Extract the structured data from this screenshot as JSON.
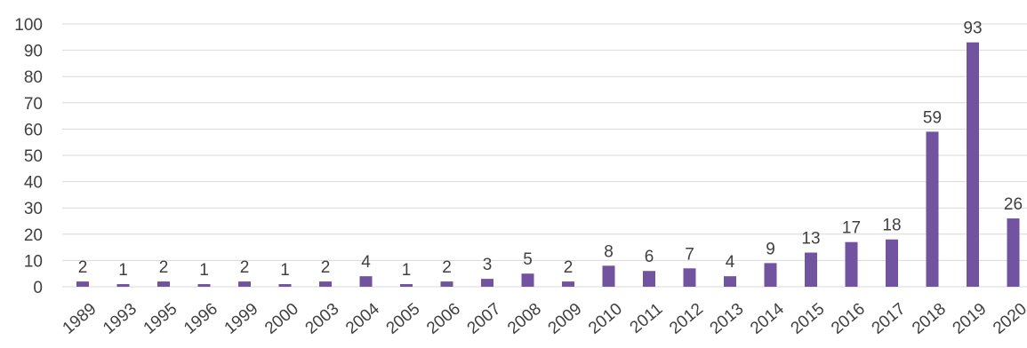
{
  "chart_data": {
    "type": "bar",
    "categories": [
      "1989",
      "1993",
      "1995",
      "1996",
      "1999",
      "2000",
      "2003",
      "2004",
      "2005",
      "2006",
      "2007",
      "2008",
      "2009",
      "2010",
      "2011",
      "2012",
      "2013",
      "2014",
      "2015",
      "2016",
      "2017",
      "2018",
      "2019",
      "2020"
    ],
    "values": [
      2,
      1,
      2,
      1,
      2,
      1,
      2,
      4,
      1,
      2,
      3,
      5,
      2,
      8,
      6,
      7,
      4,
      9,
      13,
      17,
      18,
      59,
      93,
      26
    ],
    "ylim": [
      0,
      100
    ],
    "yticks": [
      0,
      10,
      20,
      30,
      40,
      50,
      60,
      70,
      80,
      90,
      100
    ],
    "grid": true,
    "data_labels": true,
    "bar_color": "#7153a0",
    "title": "",
    "xlabel": "",
    "ylabel": ""
  }
}
